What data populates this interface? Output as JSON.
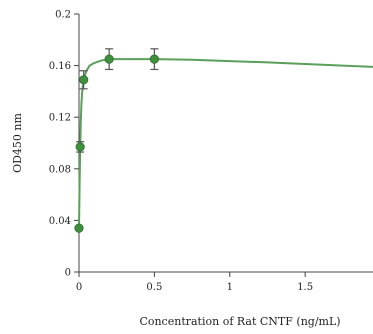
{
  "chart_data": {
    "type": "scatter",
    "title": "",
    "xlabel": "Concentration of Rat CNTF (ng/mL)",
    "ylabel": "OD450 nm",
    "xlim": [
      0,
      1.95
    ],
    "ylim": [
      0,
      0.2
    ],
    "xticks": [
      0,
      0.5,
      1,
      1.5
    ],
    "xtick_labels": [
      "0",
      "0.5",
      "1",
      "1.5"
    ],
    "yticks": [
      0,
      0.04,
      0.08,
      0.12,
      0.16,
      0.2
    ],
    "ytick_labels": [
      "0",
      "0.04",
      "0.08",
      "0.12",
      "0.16",
      "0.2"
    ],
    "grid": false,
    "legend": "none",
    "series": [
      {
        "x": [
          0,
          0.0078,
          0.031,
          0.2,
          0.5
        ],
        "y": [
          0.034,
          0.097,
          0.149,
          0.165,
          0.165
        ],
        "yerr": [
          0.001,
          0.004,
          0.007,
          0.008,
          0.008
        ]
      }
    ],
    "fit_curve": {
      "x": [
        0,
        0.004,
        0.008,
        0.012,
        0.016,
        0.02,
        0.025,
        0.031,
        0.04,
        0.05,
        0.07,
        0.1,
        0.15,
        0.2,
        0.3,
        0.5,
        0.75,
        1,
        1.25,
        1.5,
        1.75,
        1.95
      ],
      "y": [
        0.034,
        0.068,
        0.097,
        0.117,
        0.13,
        0.138,
        0.144,
        0.149,
        0.153,
        0.156,
        0.16,
        0.162,
        0.164,
        0.165,
        0.165,
        0.165,
        0.1645,
        0.1635,
        0.1625,
        0.1612,
        0.16,
        0.159
      ]
    },
    "colors": {
      "line": "#5aa05a",
      "marker": "#3f8f3f",
      "errorbar": "#555555",
      "axis": "#444444"
    }
  }
}
